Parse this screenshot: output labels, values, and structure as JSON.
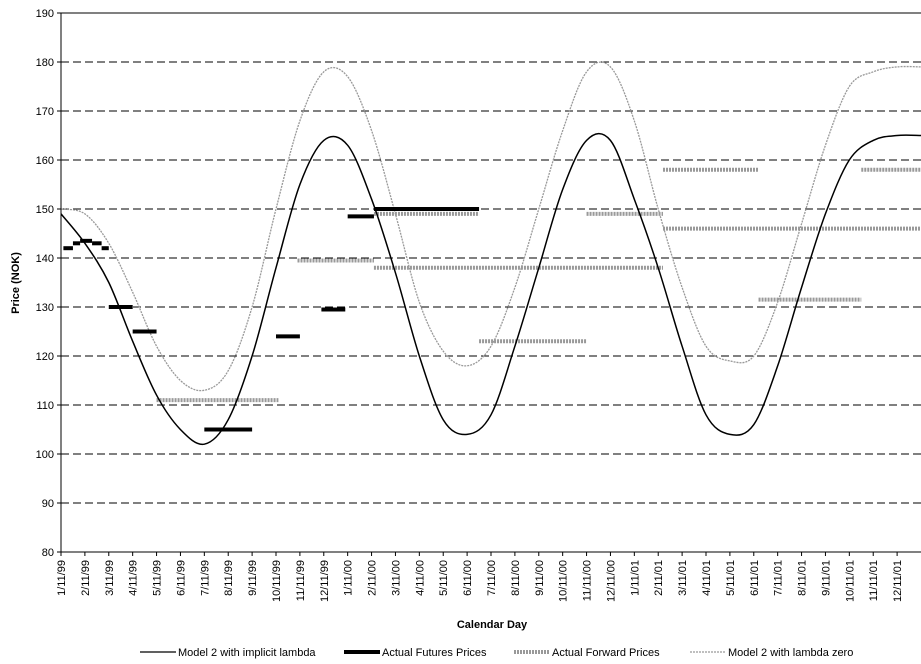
{
  "chart_data": {
    "type": "line",
    "xlabel": "Calendar Day",
    "ylabel": "Price (NOK)",
    "ylim": [
      80,
      190
    ],
    "yticks": [
      80,
      90,
      100,
      110,
      120,
      130,
      140,
      150,
      160,
      170,
      180,
      190
    ],
    "grid": "horizontal dashed",
    "xlim_months": [
      0,
      36
    ],
    "x_tick_labels": [
      "1/11/99",
      "2/11/99",
      "3/11/99",
      "4/11/99",
      "5/11/99",
      "6/11/99",
      "7/11/99",
      "8/11/99",
      "9/11/99",
      "10/11/99",
      "11/11/99",
      "12/11/99",
      "1/11/00",
      "2/11/00",
      "3/11/00",
      "4/11/00",
      "5/11/00",
      "6/11/00",
      "7/11/00",
      "8/11/00",
      "9/11/00",
      "10/11/00",
      "11/11/00",
      "12/11/00",
      "1/11/01",
      "2/11/01",
      "3/11/01",
      "4/11/01",
      "5/11/01",
      "6/11/01",
      "7/11/01",
      "8/11/01",
      "9/11/01",
      "10/11/01",
      "11/11/01",
      "12/11/01"
    ],
    "legend_position": "bottom",
    "series": [
      {
        "name": "Model 2 with implicit lambda",
        "style": "solid-thin",
        "color": "#000000",
        "x": [
          0,
          1,
          2,
          3,
          4,
          5,
          6,
          7,
          8,
          9,
          10,
          11,
          12,
          13,
          14,
          15,
          16,
          17,
          18,
          19,
          20,
          21,
          22,
          23,
          24,
          25,
          26,
          27,
          28,
          29,
          30,
          31,
          32,
          33,
          34,
          35,
          36
        ],
        "y": [
          149,
          143,
          135,
          123,
          112,
          105,
          102,
          107,
          120,
          138,
          155,
          164,
          163,
          152,
          137,
          120,
          107,
          104,
          108,
          122,
          138,
          154,
          164,
          164,
          152,
          138,
          122,
          108,
          104,
          106,
          118,
          134,
          149,
          160,
          164,
          165,
          165
        ]
      },
      {
        "name": "Model 2 with lambda zero",
        "style": "dotted-grey",
        "color": "#999999",
        "x": [
          0,
          1,
          2,
          3,
          4,
          5,
          6,
          7,
          8,
          9,
          10,
          11,
          12,
          13,
          14,
          15,
          16,
          17,
          18,
          19,
          20,
          21,
          22,
          23,
          24,
          25,
          26,
          27,
          28,
          29,
          30,
          31,
          32,
          33,
          34,
          35,
          36
        ],
        "y": [
          150,
          149,
          143,
          133,
          122,
          115,
          113,
          117,
          130,
          150,
          168,
          178,
          177,
          166,
          149,
          131,
          121,
          118,
          122,
          134,
          150,
          166,
          178,
          179,
          168,
          150,
          134,
          122,
          119,
          120,
          131,
          147,
          163,
          175,
          178,
          179,
          179
        ]
      }
    ],
    "futures": {
      "name": "Actual Futures Prices",
      "color": "#000000",
      "segments": [
        {
          "x0": 0.1,
          "x1": 0.5,
          "y": 142
        },
        {
          "x0": 0.5,
          "x1": 0.8,
          "y": 143
        },
        {
          "x0": 0.8,
          "x1": 1.3,
          "y": 143.5
        },
        {
          "x0": 1.3,
          "x1": 1.7,
          "y": 143
        },
        {
          "x0": 1.7,
          "x1": 2.0,
          "y": 142
        },
        {
          "x0": 2.0,
          "x1": 3.0,
          "y": 130
        },
        {
          "x0": 3.0,
          "x1": 4.0,
          "y": 125
        },
        {
          "x0": 6.0,
          "x1": 8.0,
          "y": 105
        },
        {
          "x0": 9.0,
          "x1": 10.0,
          "y": 124
        },
        {
          "x0": 10.9,
          "x1": 11.9,
          "y": 129.5
        },
        {
          "x0": 12.0,
          "x1": 13.1,
          "y": 148.5
        },
        {
          "x0": 13.1,
          "x1": 17.5,
          "y": 150
        }
      ]
    },
    "forwards": {
      "name": "Actual Forward Prices",
      "color": "#999999",
      "segments": [
        {
          "x0": 4.0,
          "x1": 9.1,
          "y": 111
        },
        {
          "x0": 9.9,
          "x1": 13.1,
          "y": 139.5
        },
        {
          "x0": 13.1,
          "x1": 17.5,
          "y": 149
        },
        {
          "x0": 13.1,
          "x1": 25.2,
          "y": 138
        },
        {
          "x0": 17.5,
          "x1": 22.0,
          "y": 123
        },
        {
          "x0": 22.0,
          "x1": 25.2,
          "y": 149
        },
        {
          "x0": 25.2,
          "x1": 29.2,
          "y": 158
        },
        {
          "x0": 25.2,
          "x1": 36.0,
          "y": 146
        },
        {
          "x0": 29.2,
          "x1": 33.5,
          "y": 131.5
        },
        {
          "x0": 33.5,
          "x1": 36.0,
          "y": 158
        }
      ]
    }
  }
}
